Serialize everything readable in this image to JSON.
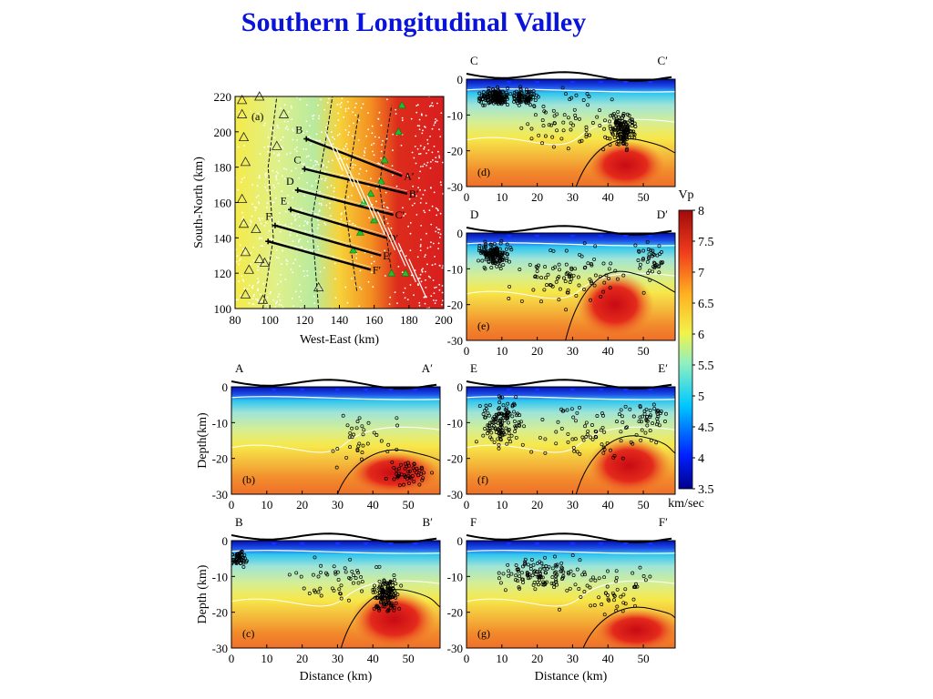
{
  "slide": {
    "title": "Southern Longitudinal Valley"
  },
  "colors": {
    "title": "#0a14d8",
    "contour_white": "#ffffff",
    "contour_black": "#000000"
  },
  "chart_data": [
    {
      "id": "a",
      "type": "heatmap",
      "panel_label": "(a)",
      "xlabel": "West-East (km)",
      "ylabel": "South-North (km)",
      "xlim": [
        80,
        200
      ],
      "ylim": [
        100,
        220
      ],
      "xticks": [
        80,
        100,
        120,
        140,
        160,
        180,
        200
      ],
      "yticks": [
        100,
        120,
        140,
        160,
        180,
        200,
        220
      ],
      "profiles": [
        {
          "start": "B",
          "end": "A′",
          "x": [
            121,
            176
          ],
          "y": [
            196,
            175
          ]
        },
        {
          "start": "C",
          "end": "B′",
          "x": [
            120,
            179
          ],
          "y": [
            179,
            165
          ]
        },
        {
          "start": "D",
          "end": "C′",
          "x": [
            116,
            171
          ],
          "y": [
            167,
            153
          ]
        },
        {
          "start": "E",
          "end": "D′",
          "x": [
            112,
            167
          ],
          "y": [
            156,
            140
          ]
        },
        {
          "start": "F",
          "end": "E′",
          "x": [
            103,
            164
          ],
          "y": [
            147,
            130
          ]
        },
        {
          "start": "",
          "end": "F′",
          "x": [
            99,
            158
          ],
          "y": [
            138,
            122
          ]
        }
      ]
    },
    {
      "id": "d",
      "type": "heatmap",
      "panel_label": "(d)",
      "start_label": "C",
      "end_label": "C′",
      "xlim": [
        0,
        59
      ],
      "ylim": [
        -30,
        0
      ],
      "xticks": [
        0,
        10,
        20,
        30,
        40,
        50
      ],
      "yticks": [
        0,
        -10,
        -20,
        -30
      ],
      "xlabel": "",
      "ylabel": ""
    },
    {
      "id": "e",
      "type": "heatmap",
      "panel_label": "(e)",
      "start_label": "D",
      "end_label": "D′",
      "xlim": [
        0,
        59
      ],
      "ylim": [
        -30,
        0
      ],
      "xticks": [
        0,
        10,
        20,
        30,
        40,
        50
      ],
      "yticks": [
        0,
        -10,
        -20,
        -30
      ],
      "xlabel": "",
      "ylabel": ""
    },
    {
      "id": "b",
      "type": "heatmap",
      "panel_label": "(b)",
      "start_label": "A",
      "end_label": "A′",
      "xlim": [
        0,
        59
      ],
      "ylim": [
        -30,
        0
      ],
      "xticks": [
        0,
        10,
        20,
        30,
        40,
        50
      ],
      "yticks": [
        0,
        -10,
        -20,
        -30
      ],
      "xlabel": "",
      "ylabel": "Depth(km)"
    },
    {
      "id": "f",
      "type": "heatmap",
      "panel_label": "(f)",
      "start_label": "E",
      "end_label": "E′",
      "xlim": [
        0,
        59
      ],
      "ylim": [
        -30,
        0
      ],
      "xticks": [
        0,
        10,
        20,
        30,
        40,
        50
      ],
      "yticks": [
        0,
        -10,
        -20,
        -30
      ],
      "xlabel": "",
      "ylabel": ""
    },
    {
      "id": "c",
      "type": "heatmap",
      "panel_label": "(c)",
      "start_label": "B",
      "end_label": "B′",
      "xlim": [
        0,
        59
      ],
      "ylim": [
        -30,
        0
      ],
      "xticks": [
        0,
        10,
        20,
        30,
        40,
        50
      ],
      "yticks": [
        0,
        -10,
        -20,
        -30
      ],
      "xlabel": "Distance (km)",
      "ylabel": "Depth (km)"
    },
    {
      "id": "g",
      "type": "heatmap",
      "panel_label": "(g)",
      "start_label": "F",
      "end_label": "F′",
      "xlim": [
        0,
        59
      ],
      "ylim": [
        -30,
        0
      ],
      "xticks": [
        0,
        10,
        20,
        30,
        40,
        50
      ],
      "yticks": [
        0,
        -10,
        -20,
        -30
      ],
      "xlabel": "Distance (km)",
      "ylabel": ""
    }
  ],
  "colorbar": {
    "title": "Vp",
    "unit": "km/sec",
    "range": [
      3.5,
      8
    ],
    "ticks": [
      "8",
      "7.5",
      "7",
      "6.5",
      "6",
      "5.5",
      "5",
      "4.5",
      "4",
      "3.5"
    ]
  }
}
